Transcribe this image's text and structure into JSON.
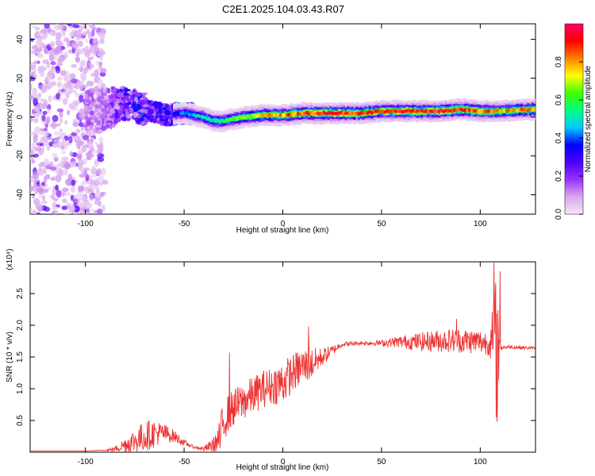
{
  "figure": {
    "title": "C2E1.2025.104.03.43.R07"
  },
  "chart_data": [
    {
      "type": "heatmap",
      "title": "C2E1.2025.104.03.43.R07",
      "xlabel": "Height of straight line (km)",
      "ylabel": "Frequency (Hz)",
      "xlim": [
        -128,
        128
      ],
      "ylim": [
        -50,
        48
      ],
      "xticks": [
        -100,
        -50,
        0,
        50,
        100
      ],
      "xtick_labels": [
        "-100",
        "-50",
        "0",
        "50",
        "100"
      ],
      "yticks": [
        -40,
        -20,
        0,
        20,
        40
      ],
      "ytick_labels": [
        "-40",
        "-20",
        "0",
        "20",
        "40"
      ],
      "grid": false,
      "description_of_content": "Spectral ridge near 0 Hz: scattered low-amplitude noise for x < -90 km, noisy ridge around 0-10 Hz from -90 to -60 km, converging to a strong narrow ridge near 0 Hz from -50 km to 128 km",
      "ridge_center_hz": [
        [
          -90,
          4
        ],
        [
          -80,
          7
        ],
        [
          -70,
          4
        ],
        [
          -60,
          1
        ],
        [
          -50,
          2
        ],
        [
          -40,
          0
        ],
        [
          -35,
          -2
        ],
        [
          -30,
          -2
        ],
        [
          -20,
          0
        ],
        [
          -10,
          1
        ],
        [
          0,
          1
        ],
        [
          10,
          2
        ],
        [
          20,
          2
        ],
        [
          30,
          2
        ],
        [
          40,
          2
        ],
        [
          50,
          3
        ],
        [
          60,
          3
        ],
        [
          70,
          3
        ],
        [
          80,
          3
        ],
        [
          90,
          4
        ],
        [
          100,
          3
        ],
        [
          110,
          3
        ],
        [
          128,
          4
        ]
      ],
      "ridge_peak_amplitude": [
        [
          -90,
          0.15
        ],
        [
          -80,
          0.3
        ],
        [
          -70,
          0.35
        ],
        [
          -60,
          0.3
        ],
        [
          -50,
          0.45
        ],
        [
          -40,
          0.55
        ],
        [
          -30,
          0.6
        ],
        [
          -20,
          0.7
        ],
        [
          -10,
          0.8
        ],
        [
          0,
          0.85
        ],
        [
          10,
          0.9
        ],
        [
          20,
          0.95
        ],
        [
          30,
          0.95
        ],
        [
          40,
          0.9
        ],
        [
          50,
          0.92
        ],
        [
          60,
          0.95
        ],
        [
          70,
          0.95
        ],
        [
          80,
          0.95
        ],
        [
          90,
          0.92
        ],
        [
          100,
          0.9
        ],
        [
          110,
          0.8
        ],
        [
          128,
          0.9
        ]
      ],
      "colorbar": {
        "label": "Normalized spectral amplitude",
        "range": [
          0.0,
          1.0
        ],
        "ticks": [
          0.0,
          0.2,
          0.4,
          0.6,
          0.8
        ],
        "tick_labels": [
          "0.0",
          "0.2",
          "0.4",
          "0.6",
          "0.8"
        ],
        "colors": [
          "#f4e6f4",
          "#d8a8ec",
          "#9a33ff",
          "#4b00ff",
          "#0000ff",
          "#00c8ff",
          "#00ff80",
          "#40ff00",
          "#ffff00",
          "#ff8000",
          "#ff0000",
          "#ff0066"
        ]
      }
    },
    {
      "type": "line",
      "xlabel": "Height of straight line (km)",
      "ylabel": "SNR (10 * v/v)",
      "scale_label": "(x10⁴)",
      "xlim": [
        -128,
        128
      ],
      "ylim": [
        0,
        3.0
      ],
      "xticks": [
        -100,
        -50,
        0,
        50,
        100
      ],
      "xtick_labels": [
        "-100",
        "-50",
        "0",
        "50",
        "100"
      ],
      "yticks": [
        0.5,
        1.0,
        1.5,
        2.0,
        2.5
      ],
      "ytick_labels": [
        "0.5",
        "1.0",
        "1.5",
        "2.0",
        "2.5"
      ],
      "grid": false,
      "color": "#ee3333",
      "envelope": {
        "x": [
          -128,
          -100,
          -90,
          -85,
          -80,
          -75,
          -70,
          -65,
          -60,
          -55,
          -50,
          -45,
          -40,
          -35,
          -32,
          -30,
          -28,
          -25,
          -20,
          -15,
          -10,
          -5,
          0,
          5,
          10,
          15,
          20,
          25,
          30,
          40,
          50,
          60,
          70,
          80,
          90,
          100,
          105,
          107,
          108,
          109,
          110,
          115,
          120,
          128
        ],
        "base": [
          0.02,
          0.02,
          0.03,
          0.05,
          0.12,
          0.18,
          0.25,
          0.3,
          0.3,
          0.25,
          0.15,
          0.08,
          0.05,
          0.12,
          0.2,
          0.5,
          0.6,
          0.7,
          0.8,
          0.9,
          1.0,
          1.05,
          1.1,
          1.25,
          1.35,
          1.4,
          1.5,
          1.6,
          1.7,
          1.72,
          1.72,
          1.74,
          1.74,
          1.76,
          1.76,
          1.74,
          1.72,
          1.6,
          1.6,
          1.6,
          1.65,
          1.66,
          1.65,
          1.64
        ],
        "noise": [
          0.0,
          0.0,
          0.01,
          0.04,
          0.12,
          0.2,
          0.25,
          0.22,
          0.15,
          0.1,
          0.05,
          0.02,
          0.04,
          0.12,
          0.3,
          0.35,
          0.3,
          0.3,
          0.3,
          0.3,
          0.3,
          0.3,
          0.35,
          0.3,
          0.3,
          0.25,
          0.15,
          0.08,
          0.04,
          0.03,
          0.05,
          0.1,
          0.15,
          0.18,
          0.2,
          0.2,
          0.2,
          0.9,
          1.2,
          0.9,
          0.05,
          0.03,
          0.03,
          0.02
        ]
      },
      "spikes": [
        [
          -27,
          1.57
        ],
        [
          13,
          1.98
        ],
        [
          88,
          2.1
        ],
        [
          107,
          3.0
        ],
        [
          108.5,
          0.48
        ],
        [
          110,
          2.85
        ]
      ]
    }
  ]
}
